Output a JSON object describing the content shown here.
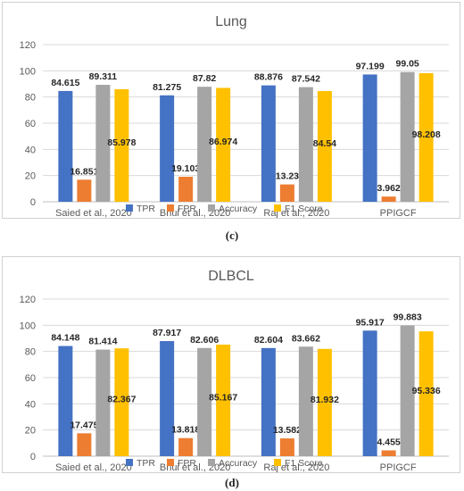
{
  "figure": {
    "captions": [
      "(c)",
      "(d)"
    ]
  },
  "chart_data": [
    {
      "type": "bar",
      "title": "Lung",
      "categories": [
        "Saied et al., 2020",
        "Bhui et al., 2020",
        "Raj et al., 2020",
        "PPIGCF"
      ],
      "series": [
        {
          "name": "TPR",
          "color": "#4472C4",
          "values": [
            84.615,
            81.275,
            88.876,
            97.199
          ],
          "labels": [
            "84.615",
            "81.275",
            "88.876",
            "97.199"
          ]
        },
        {
          "name": "FPR",
          "color": "#ED7D31",
          "values": [
            16.851,
            19.103,
            13.23,
            3.962
          ],
          "labels": [
            "16.851",
            "19.103",
            "13.23",
            "3.962"
          ]
        },
        {
          "name": "Accuracy",
          "color": "#A5A5A5",
          "values": [
            89.311,
            87.82,
            87.542,
            99.05
          ],
          "labels": [
            "89.311",
            "87.82",
            "87.542",
            "99.05"
          ]
        },
        {
          "name": "F1 Score",
          "color": "#FFC000",
          "values": [
            85.978,
            86.974,
            84.54,
            98.208
          ],
          "labels": [
            "85.978",
            "86.974",
            "84.54",
            "98.208"
          ]
        }
      ],
      "ylim": [
        0,
        120
      ],
      "yticks": [
        "0",
        "20",
        "40",
        "60",
        "80",
        "100",
        "120"
      ],
      "grid": true,
      "legend": "bottom"
    },
    {
      "type": "bar",
      "title": "DLBCL",
      "categories": [
        "Saied et al., 2020",
        "Bhui et al., 2020",
        "Raj et al., 2020",
        "PPIGCF"
      ],
      "series": [
        {
          "name": "TPR",
          "color": "#4472C4",
          "values": [
            84.148,
            87.917,
            82.604,
            95.917
          ],
          "labels": [
            "84.148",
            "87.917",
            "82.604",
            "95.917"
          ]
        },
        {
          "name": "FPR",
          "color": "#ED7D31",
          "values": [
            17.475,
            13.818,
            13.582,
            4.455
          ],
          "labels": [
            "17.475",
            "13.818",
            "13.582",
            "4.455"
          ]
        },
        {
          "name": "Accuracy",
          "color": "#A5A5A5",
          "values": [
            81.414,
            82.606,
            83.662,
            99.883
          ],
          "labels": [
            "81.414",
            "82.606",
            "83.662",
            "99.883"
          ]
        },
        {
          "name": "F1 Score",
          "color": "#FFC000",
          "values": [
            82.367,
            85.167,
            81.932,
            95.336
          ],
          "labels": [
            "82.367",
            "85.167",
            "81.932",
            "95.336"
          ]
        }
      ],
      "ylim": [
        0,
        120
      ],
      "yticks": [
        "0",
        "20",
        "40",
        "60",
        "80",
        "100",
        "120"
      ],
      "grid": true,
      "legend": "bottom"
    }
  ]
}
